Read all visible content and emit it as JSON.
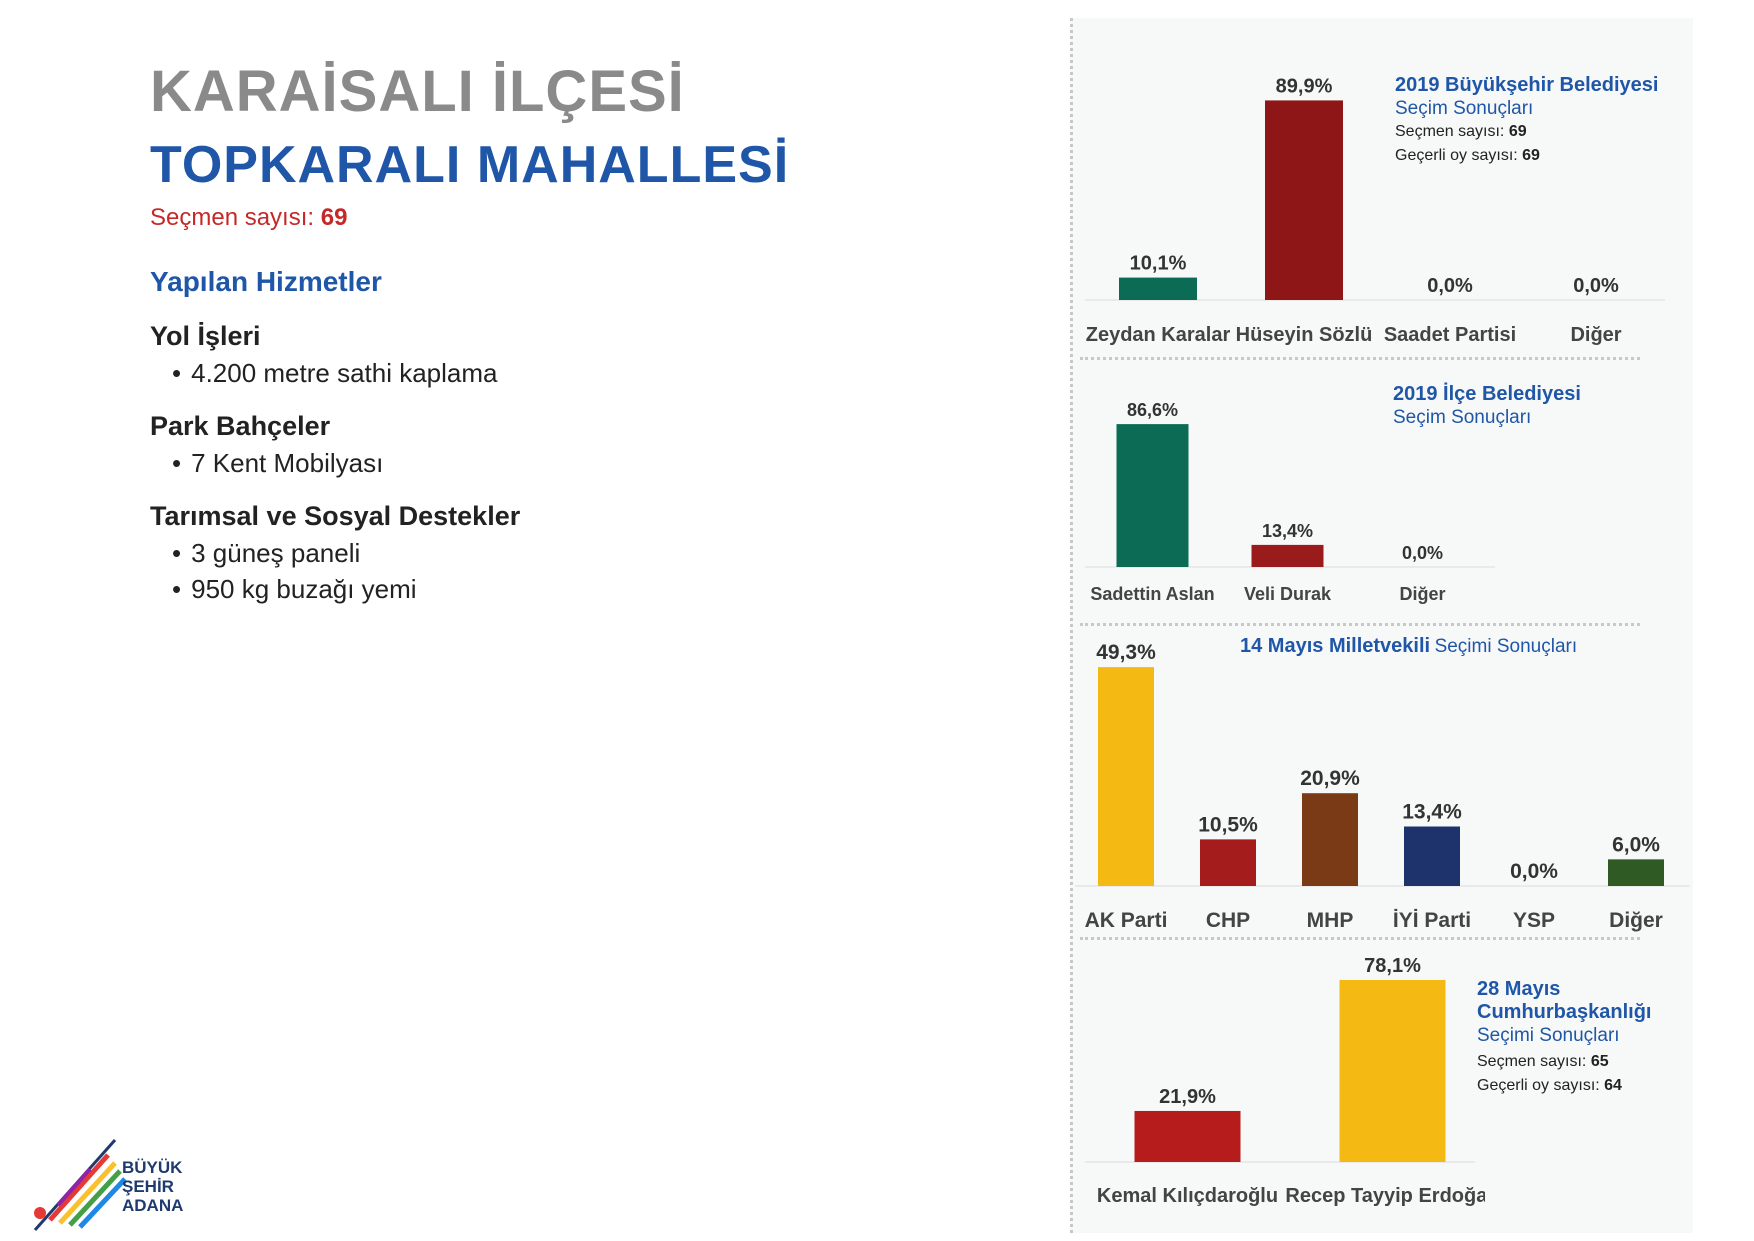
{
  "header": {
    "title_line1": "KARAİSALI İLÇESİ",
    "title_line2": "TOPKARALI MAHALLESİ",
    "voters_label": "Seçmen sayısı:",
    "voters_value": "69"
  },
  "services": {
    "heading": "Yapılan Hizmetler",
    "sections": [
      {
        "title": "Yol İşleri",
        "items": [
          "4.200 metre sathi kaplama"
        ]
      },
      {
        "title": "Park Bahçeler",
        "items": [
          "7 Kent Mobilyası"
        ]
      },
      {
        "title": "Tarımsal ve Sosyal Destekler",
        "items": [
          "3 güneş paneli",
          "950 kg buzağı yemi"
        ]
      }
    ]
  },
  "logo": {
    "line1": "BÜYÜK",
    "line2": "ŞEHİR",
    "line3": "ADANA"
  },
  "colors": {
    "blue": "#1f56a8",
    "red": "#c62828",
    "gray": "#8a8a8a"
  },
  "chart_data": [
    {
      "type": "bar",
      "title": "2019 Büyükşehir Belediyesi",
      "subtitle": "Seçim Sonuçları",
      "info": [
        {
          "label": "Seçmen sayısı:",
          "value": "69"
        },
        {
          "label": "Geçerli oy sayısı:",
          "value": "69"
        }
      ],
      "categories": [
        "Zeydan Karalar",
        "Hüseyin Sözlü",
        "Saadet Partisi",
        "Diğer"
      ],
      "values": [
        10.1,
        89.9,
        0.0,
        0.0
      ],
      "labels": [
        "10,1%",
        "89,9%",
        "0,0%",
        "0,0%"
      ],
      "colors": [
        "#0b6b55",
        "#8e1616",
        "#cccccc",
        "#cccccc"
      ],
      "ylim": [
        0,
        100
      ]
    },
    {
      "type": "bar",
      "title": "2019 İlçe Belediyesi",
      "subtitle": "Seçim Sonuçları",
      "categories": [
        "Sadettin Aslan",
        "Veli Durak",
        "Diğer"
      ],
      "values": [
        86.6,
        13.4,
        0.0
      ],
      "labels": [
        "86,6%",
        "13,4%",
        "0,0%"
      ],
      "colors": [
        "#0b6b55",
        "#9a1b1b",
        "#cccccc"
      ],
      "ylim": [
        0,
        100
      ]
    },
    {
      "type": "bar",
      "title": "14 Mayıs Milletvekili",
      "subtitle": "Seçimi Sonuçları",
      "categories": [
        "AK Parti",
        "CHP",
        "MHP",
        "İYİ Parti",
        "YSP",
        "Diğer"
      ],
      "values": [
        49.3,
        10.5,
        20.9,
        13.4,
        0.0,
        6.0
      ],
      "labels": [
        "49,3%",
        "10,5%",
        "20,9%",
        "13,4%",
        "0,0%",
        "6,0%"
      ],
      "colors": [
        "#f5b914",
        "#a51c1c",
        "#7a3a16",
        "#1e336b",
        "#cccccc",
        "#2f5a23"
      ],
      "ylim": [
        0,
        50
      ]
    },
    {
      "type": "bar",
      "title": "28 Mayıs Cumhurbaşkanlığı",
      "subtitle": "Seçimi Sonuçları",
      "info": [
        {
          "label": "Seçmen sayısı:",
          "value": "65"
        },
        {
          "label": "Geçerli oy sayısı:",
          "value": "64"
        }
      ],
      "categories": [
        "Kemal Kılıçdaroğlu",
        "Recep Tayyip Erdoğan"
      ],
      "values": [
        21.9,
        78.1
      ],
      "labels": [
        "21,9%",
        "78,1%"
      ],
      "colors": [
        "#b71c1c",
        "#f5b914"
      ],
      "ylim": [
        0,
        78.1
      ]
    }
  ]
}
